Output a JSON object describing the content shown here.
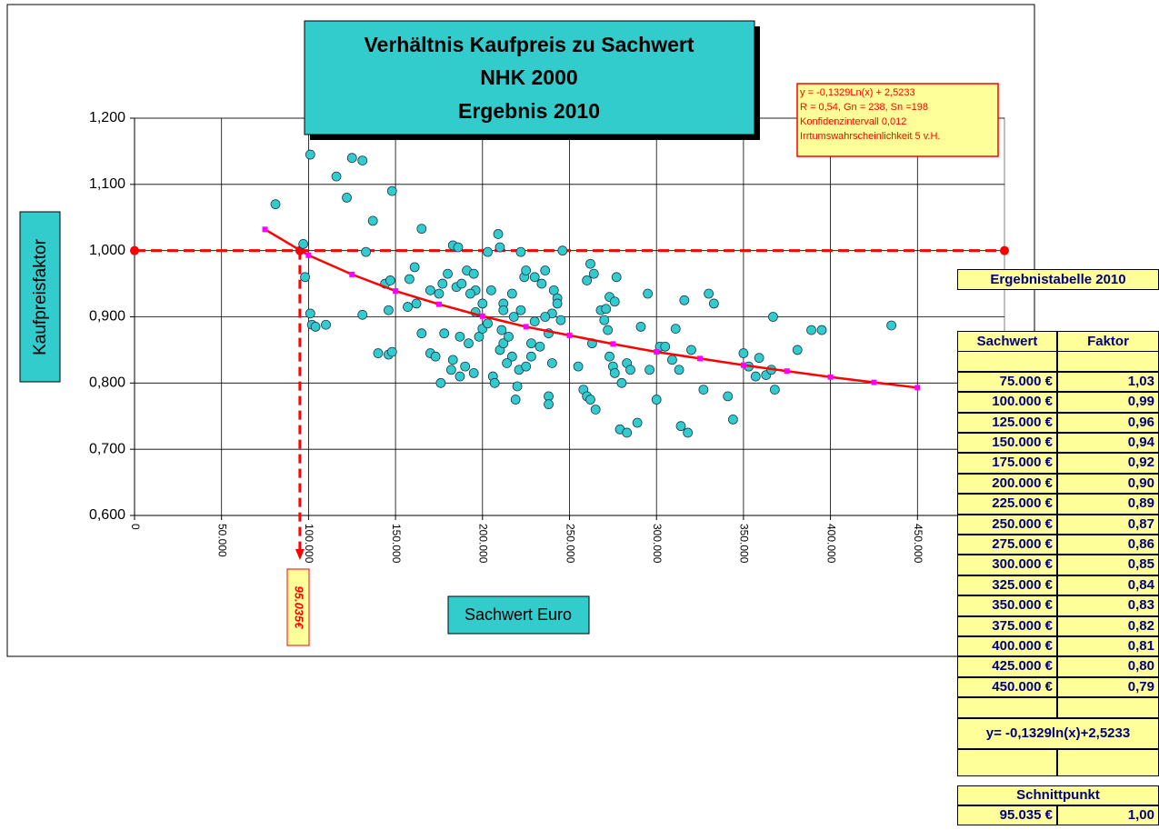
{
  "chart_data": {
    "type": "scatter",
    "title": [
      "Verhältnis Kaufpreis zu Sachwert",
      "NHK 2000",
      "Ergebnis 2010"
    ],
    "x_label": "Sachwert Euro",
    "y_label": "Kaufpreisfaktor",
    "equation_box": [
      "y = -0,1329Ln(x) + 2,5233",
      "R = 0,54, Gn =  238, Sn =198",
      "Konfidenzintervall  0,012",
      "Irrtumswahrscheinlichkeit 5 v.H."
    ],
    "xlim": [
      0,
      500000
    ],
    "ylim": [
      0.6,
      1.2
    ],
    "xticks": [
      0,
      {
        "value": 50000,
        "label": "50.000"
      },
      {
        "value": 100000,
        "label": "100.000"
      },
      {
        "value": 150000,
        "label": "150.000"
      },
      {
        "value": 200000,
        "label": "200.000"
      },
      {
        "value": 250000,
        "label": "250.000"
      },
      {
        "value": 300000,
        "label": "300.000"
      },
      {
        "value": 350000,
        "label": "350.000"
      },
      {
        "value": 400000,
        "label": "400.000"
      },
      {
        "value": 450000,
        "label": "450.000"
      }
    ],
    "yticks": [
      {
        "value": 0.6,
        "label": "0,600"
      },
      {
        "value": 0.7,
        "label": "0,700"
      },
      {
        "value": 0.8,
        "label": "0,800"
      },
      {
        "value": 0.9,
        "label": "0,900"
      },
      {
        "value": 1.0,
        "label": "1,000"
      },
      {
        "value": 1.1,
        "label": "1,100"
      },
      {
        "value": 1.2,
        "label": "1,200"
      }
    ],
    "grid": true,
    "series": [
      {
        "color": "#33cccc",
        "x": [
          81000,
          101000,
          116000,
          125000,
          131000,
          122000,
          148000,
          137000,
          165000,
          97000,
          133000,
          98000,
          101000,
          102000,
          104000,
          110000,
          144000,
          147000,
          158000,
          161000,
          146000,
          131000,
          140000,
          146000,
          148000,
          162000,
          157000,
          170000,
          177000,
          180000,
          183000,
          186000,
          191000,
          185000,
          188000,
          195000,
          196000,
          193000,
          200000,
          196000,
          175000,
          165000,
          170000,
          173000,
          178000,
          176000,
          182000,
          183000,
          187000,
          190000,
          195000,
          192000,
          187000,
          198000,
          200000,
          203000,
          206000,
          207000,
          210000,
          212000,
          211000,
          209000,
          210000,
          203000,
          205000,
          212000,
          212000,
          217000,
          218000,
          215000,
          217000,
          214000,
          221000,
          220000,
          219000,
          225000,
          228000,
          222000,
          224000,
          225000,
          222000,
          230000,
          234000,
          236000,
          241000,
          243000,
          243000,
          245000,
          240000,
          236000,
          230000,
          228000,
          233000,
          238000,
          240000,
          238000,
          238000,
          246000,
          255000,
          258000,
          260000,
          262000,
          265000,
          263000,
          260000,
          262000,
          264000,
          268000,
          271000,
          273000,
          276000,
          277000,
          270000,
          272000,
          273000,
          275000,
          276000,
          280000,
          283000,
          285000,
          279000,
          283000,
          289000,
          291000,
          295000,
          296000,
          300000,
          302000,
          305000,
          309000,
          311000,
          313000,
          314000,
          318000,
          316000,
          320000,
          327000,
          330000,
          333000,
          341000,
          344000,
          350000,
          353000,
          357000,
          359000,
          363000,
          366000,
          367000,
          368000,
          381000,
          389000,
          395000,
          435000
        ],
        "values": [
          1.07,
          1.145,
          1.112,
          1.14,
          1.136,
          1.08,
          1.09,
          1.045,
          1.033,
          1.01,
          0.998,
          0.96,
          0.905,
          0.888,
          0.885,
          0.888,
          0.95,
          0.955,
          0.957,
          0.975,
          0.91,
          0.903,
          0.845,
          0.843,
          0.847,
          0.92,
          0.915,
          0.94,
          0.95,
          0.965,
          1.008,
          1.005,
          0.97,
          0.945,
          0.95,
          0.965,
          0.94,
          0.935,
          0.92,
          0.907,
          0.935,
          0.875,
          0.845,
          0.84,
          0.875,
          0.8,
          0.82,
          0.835,
          0.81,
          0.825,
          0.815,
          0.86,
          0.87,
          0.87,
          0.882,
          0.89,
          0.81,
          0.8,
          0.85,
          0.86,
          0.88,
          1.025,
          1.005,
          0.998,
          0.94,
          0.92,
          0.91,
          0.935,
          0.9,
          0.87,
          0.84,
          0.83,
          0.82,
          0.795,
          0.775,
          0.825,
          0.84,
          0.91,
          0.96,
          0.97,
          0.998,
          0.96,
          0.95,
          0.97,
          0.94,
          0.928,
          0.92,
          0.895,
          0.905,
          0.9,
          0.893,
          0.86,
          0.855,
          0.875,
          0.83,
          0.78,
          0.768,
          1.0,
          0.825,
          0.79,
          0.78,
          0.775,
          0.76,
          0.86,
          0.955,
          0.98,
          0.965,
          0.91,
          0.912,
          0.93,
          0.923,
          0.96,
          0.895,
          0.88,
          0.84,
          0.825,
          0.815,
          0.8,
          0.83,
          0.82,
          0.73,
          0.725,
          0.74,
          0.885,
          0.935,
          0.82,
          0.775,
          0.855,
          0.855,
          0.835,
          0.882,
          0.82,
          0.735,
          0.725,
          0.925,
          0.85,
          0.79,
          0.935,
          0.92,
          0.78,
          0.745,
          0.845,
          0.825,
          0.81,
          0.838,
          0.812,
          0.82,
          0.9,
          0.79,
          0.85,
          0.88,
          0.88,
          0.887
        ]
      },
      {
        "type": "line",
        "color": "#ff0000",
        "marker_color": "#ff00ff",
        "x": [
          75000,
          100000,
          125000,
          150000,
          175000,
          200000,
          225000,
          250000,
          275000,
          300000,
          325000,
          350000,
          375000,
          400000,
          425000,
          450000
        ],
        "values": [
          1.032,
          0.993,
          0.964,
          0.939,
          0.919,
          0.901,
          0.885,
          0.872,
          0.859,
          0.847,
          0.837,
          0.827,
          0.818,
          0.809,
          0.801,
          0.793
        ]
      }
    ],
    "reference_y": 1.0,
    "reference_color": "#ff0000",
    "intersection": {
      "x": 95035,
      "label": "95.035€"
    }
  },
  "table": {
    "title": "Ergebnistabelle 2010",
    "header": [
      "Sachwert",
      "Faktor"
    ],
    "rows": [
      [
        "75.000 €",
        "1,03"
      ],
      [
        "100.000 €",
        "0,99"
      ],
      [
        "125.000 €",
        "0,96"
      ],
      [
        "150.000 €",
        "0,94"
      ],
      [
        "175.000 €",
        "0,92"
      ],
      [
        "200.000 €",
        "0,90"
      ],
      [
        "225.000 €",
        "0,89"
      ],
      [
        "250.000 €",
        "0,87"
      ],
      [
        "275.000 €",
        "0,86"
      ],
      [
        "300.000 €",
        "0,85"
      ],
      [
        "325.000 €",
        "0,84"
      ],
      [
        "350.000 €",
        "0,83"
      ],
      [
        "375.000 €",
        "0,82"
      ],
      [
        "400.000 €",
        "0,81"
      ],
      [
        "425.000 €",
        "0,80"
      ],
      [
        "450.000 €",
        "0,79"
      ]
    ],
    "formula": "y= -0,1329ln(x)+2,5233",
    "intersection_title": "Schnittpunkt",
    "intersection": [
      "95.035 €",
      "1,00"
    ]
  }
}
